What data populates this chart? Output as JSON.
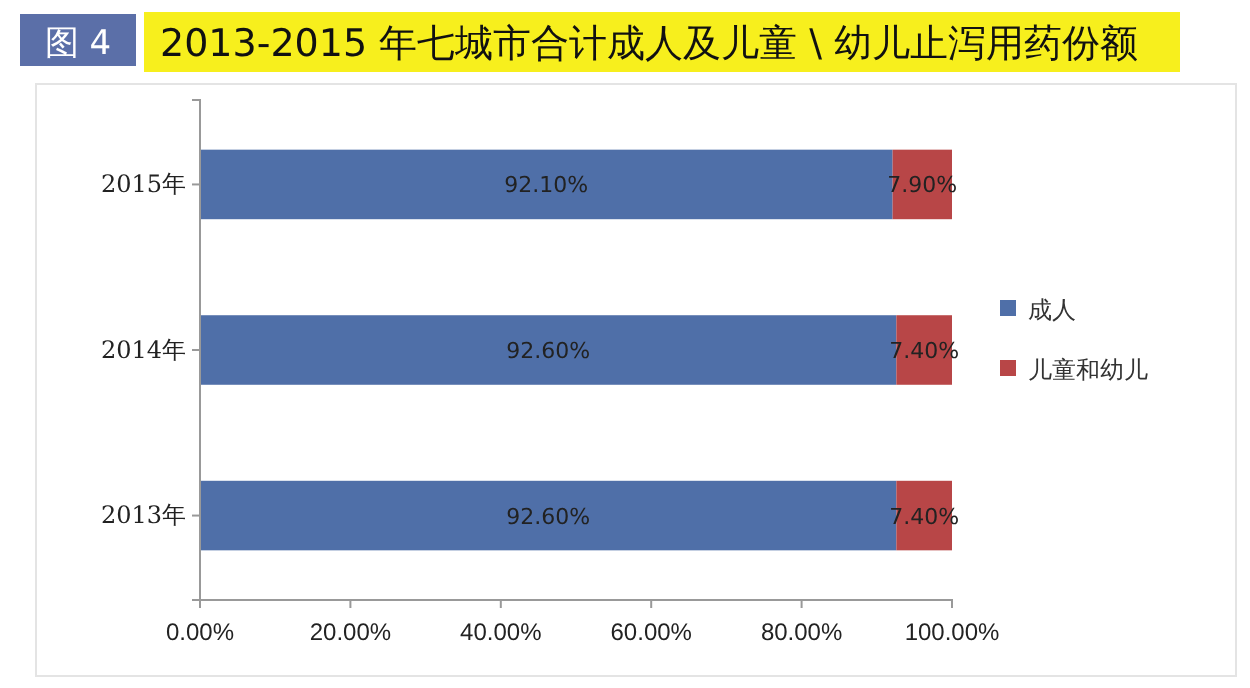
{
  "chart_data": {
    "type": "bar",
    "orientation": "horizontal",
    "stacked": true,
    "title": "2013-2015 年七城市合计成人及儿童 \\ 幼儿止泻用药份额",
    "annotations": [
      "图 4"
    ],
    "categories": [
      "2015年",
      "2014年",
      "2013年"
    ],
    "series": [
      {
        "name": "成人",
        "color": "#4f6fa8",
        "values": [
          92.1,
          92.6,
          92.6
        ],
        "value_labels": [
          "92.10%",
          "92.60%",
          "92.60%"
        ]
      },
      {
        "name": "儿童和幼儿",
        "color": "#b84647",
        "values": [
          7.9,
          7.4,
          7.4
        ],
        "value_labels": [
          "7.90%",
          "7.40%",
          "7.40%"
        ]
      }
    ],
    "xlim": [
      0,
      100
    ],
    "xticks": [
      {
        "value": 0,
        "label": "0.00%"
      },
      {
        "value": 20,
        "label": "20.00%"
      },
      {
        "value": 40,
        "label": "40.00%"
      },
      {
        "value": 60,
        "label": "60.00%"
      },
      {
        "value": 80,
        "label": "80.00%"
      },
      {
        "value": 100,
        "label": "100.00%"
      }
    ],
    "legend": "right",
    "grid": false
  }
}
